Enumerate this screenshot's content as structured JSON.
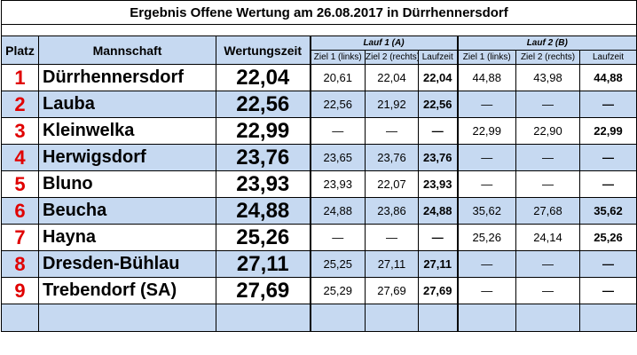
{
  "title": "Ergebnis Offene Wertung am 26.08.2017 in Dürrhennersdorf",
  "headers": {
    "platz": "Platz",
    "mannschaft": "Mannschaft",
    "wertungszeit": "Wertungszeit",
    "lauf1": "Lauf 1 (A)",
    "lauf2": "Lauf 2 (B)",
    "ziel1": "Ziel 1 (links)",
    "ziel2": "Ziel 2 (rechts)",
    "laufzeit": "Laufzeit"
  },
  "rows": [
    {
      "platz": "1",
      "team": "Dürrhennersdorf",
      "zeit": "22,04",
      "l1z1": "20,61",
      "l1z2": "22,04",
      "l1lz": "22,04",
      "l2z1": "44,88",
      "l2z2": "43,98",
      "l2lz": "44,88"
    },
    {
      "platz": "2",
      "team": "Lauba",
      "zeit": "22,56",
      "l1z1": "22,56",
      "l1z2": "21,92",
      "l1lz": "22,56",
      "l2z1": "—",
      "l2z2": "—",
      "l2lz": "—"
    },
    {
      "platz": "3",
      "team": "Kleinwelka",
      "zeit": "22,99",
      "l1z1": "—",
      "l1z2": "—",
      "l1lz": "—",
      "l2z1": "22,99",
      "l2z2": "22,90",
      "l2lz": "22,99"
    },
    {
      "platz": "4",
      "team": "Herwigsdorf",
      "zeit": "23,76",
      "l1z1": "23,65",
      "l1z2": "23,76",
      "l1lz": "23,76",
      "l2z1": "—",
      "l2z2": "—",
      "l2lz": "—"
    },
    {
      "platz": "5",
      "team": "Bluno",
      "zeit": "23,93",
      "l1z1": "23,93",
      "l1z2": "22,07",
      "l1lz": "23,93",
      "l2z1": "—",
      "l2z2": "—",
      "l2lz": "—"
    },
    {
      "platz": "6",
      "team": "Beucha",
      "zeit": "24,88",
      "l1z1": "24,88",
      "l1z2": "23,86",
      "l1lz": "24,88",
      "l2z1": "35,62",
      "l2z2": "27,68",
      "l2lz": "35,62"
    },
    {
      "platz": "7",
      "team": "Hayna",
      "zeit": "25,26",
      "l1z1": "—",
      "l1z2": "—",
      "l1lz": "—",
      "l2z1": "25,26",
      "l2z2": "24,14",
      "l2lz": "25,26"
    },
    {
      "platz": "8",
      "team": "Dresden-Bühlau",
      "zeit": "27,11",
      "l1z1": "25,25",
      "l1z2": "27,11",
      "l1lz": "27,11",
      "l2z1": "—",
      "l2z2": "—",
      "l2lz": "—"
    },
    {
      "platz": "9",
      "team": "Trebendorf (SA)",
      "zeit": "27,69",
      "l1z1": "25,29",
      "l1z2": "27,69",
      "l1lz": "27,69",
      "l2z1": "—",
      "l2z2": "—",
      "l2lz": "—"
    }
  ],
  "colors": {
    "header_bg": "#c6d9f1",
    "alt_row_bg": "#c6d9f1",
    "platz_color": "#e00000"
  }
}
